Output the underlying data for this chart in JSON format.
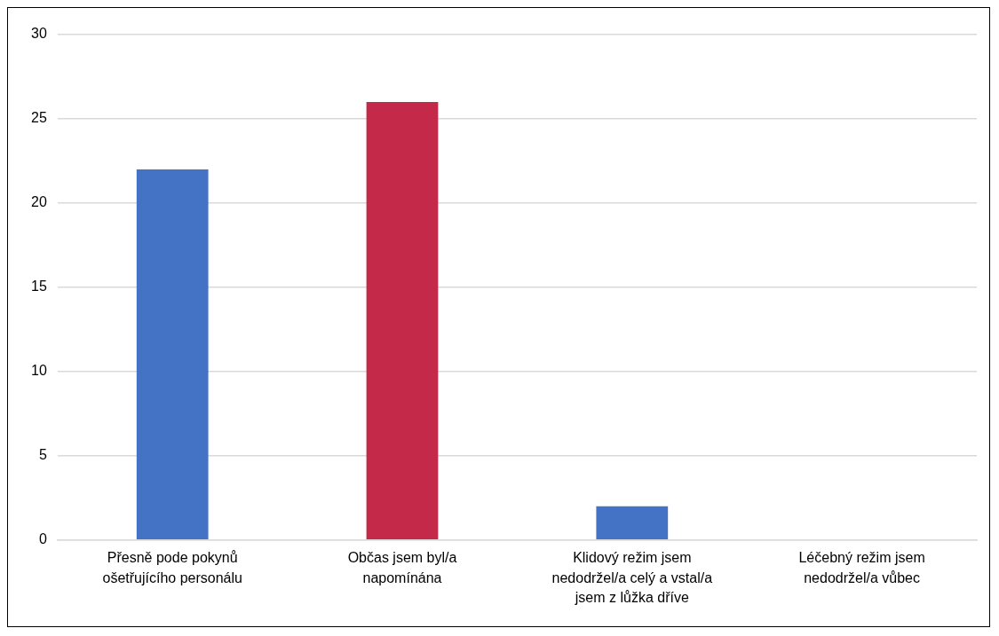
{
  "chart_data": {
    "type": "bar",
    "categories": [
      "Přesně pode pokynů ošetřujícího personálu",
      "Občas jsem byl/a napomínána",
      "Klidový režim jsem nedodržel/a celý a vstal/a jsem z lůžka dříve",
      "Léčebný režim jsem nedodržel/a vůbec"
    ],
    "values": [
      22,
      26,
      2,
      0
    ],
    "colors": [
      "#4472c4",
      "#c4294a",
      "#4472c4",
      "#4472c4"
    ],
    "ylim": [
      0,
      30
    ],
    "yticks": [
      0,
      5,
      10,
      15,
      20,
      25,
      30
    ],
    "grid": "y",
    "legend": false
  }
}
